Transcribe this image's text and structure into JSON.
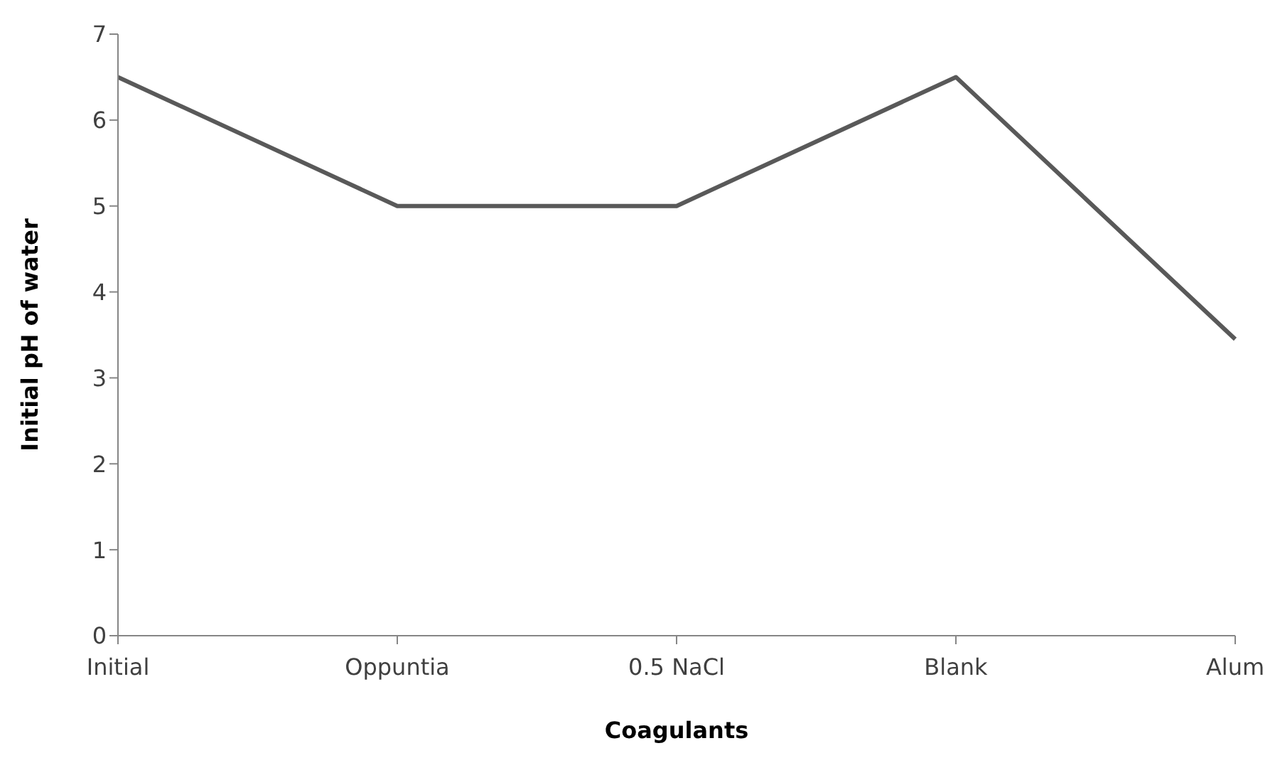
{
  "chart_data": {
    "type": "line",
    "xlabel": "Coagulants",
    "ylabel": "Initial pH of water",
    "categories": [
      "Initial",
      "Oppuntia",
      "0.5 NaCl",
      "Blank",
      "Alum"
    ],
    "series": [
      {
        "color": "#595959",
        "values": [
          6.5,
          5,
          5,
          6.5,
          3.45
        ]
      }
    ],
    "ylim": [
      0,
      7
    ],
    "yticks": [
      0,
      1,
      2,
      3,
      4,
      5,
      6,
      7
    ],
    "grid": false,
    "legend": false,
    "marker": "none",
    "line_style": "solid"
  }
}
